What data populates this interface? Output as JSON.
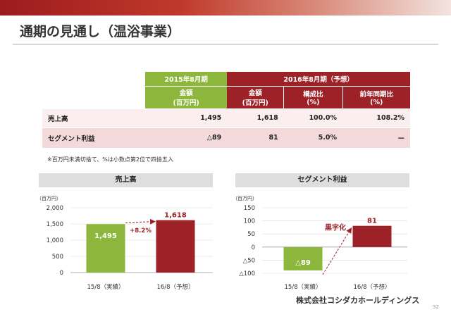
{
  "title": "通期の見通し（温浴事業）",
  "table": {
    "period_2015": "2015年8月期",
    "period_2016": "2016年8月期（予想）",
    "columns": [
      "金額\n(百万円)",
      "金額\n(百万円)",
      "構成比\n(%)",
      "前年同期比\n(%)"
    ],
    "rows": [
      {
        "label": "売上高",
        "values": [
          "1,495",
          "1,618",
          "100.0%",
          "108.2%"
        ]
      },
      {
        "label": "セグメント利益",
        "values": [
          "△89",
          "81",
          "5.0%",
          "ー"
        ]
      }
    ]
  },
  "note": "※百万円未満切捨て、%は小数点第2位で四捨五入",
  "footer_company": "株式会社コシダカホールディングス",
  "page_number": "32",
  "chart_data": [
    {
      "type": "bar",
      "title": "売上高",
      "unit_label": "（百万円）",
      "categories": [
        "15/8（実績）",
        "16/8（予想）"
      ],
      "values": [
        1495,
        1618
      ],
      "value_labels": [
        "1,495",
        "1,618"
      ],
      "colors": [
        "#8cb63c",
        "#9c2228"
      ],
      "yticks": [
        0,
        500,
        1000,
        1500,
        2000
      ],
      "ytick_labels": [
        "0",
        "500",
        "1,000",
        "1,500",
        "2,000"
      ],
      "ylim": [
        0,
        2000
      ],
      "annotation": "+8.2%"
    },
    {
      "type": "bar",
      "title": "セグメント利益",
      "unit_label": "（百万円）",
      "categories": [
        "15/8（実績）",
        "16/8（予想）"
      ],
      "values": [
        -89,
        81
      ],
      "value_labels": [
        "△89",
        "81"
      ],
      "colors": [
        "#8cb63c",
        "#9c2228"
      ],
      "yticks": [
        -100,
        -50,
        0,
        50,
        100,
        150
      ],
      "ytick_labels": [
        "△100",
        "△50",
        "0",
        "50",
        "100",
        "150"
      ],
      "ylim": [
        -100,
        150
      ],
      "annotation": "黒字化"
    }
  ]
}
